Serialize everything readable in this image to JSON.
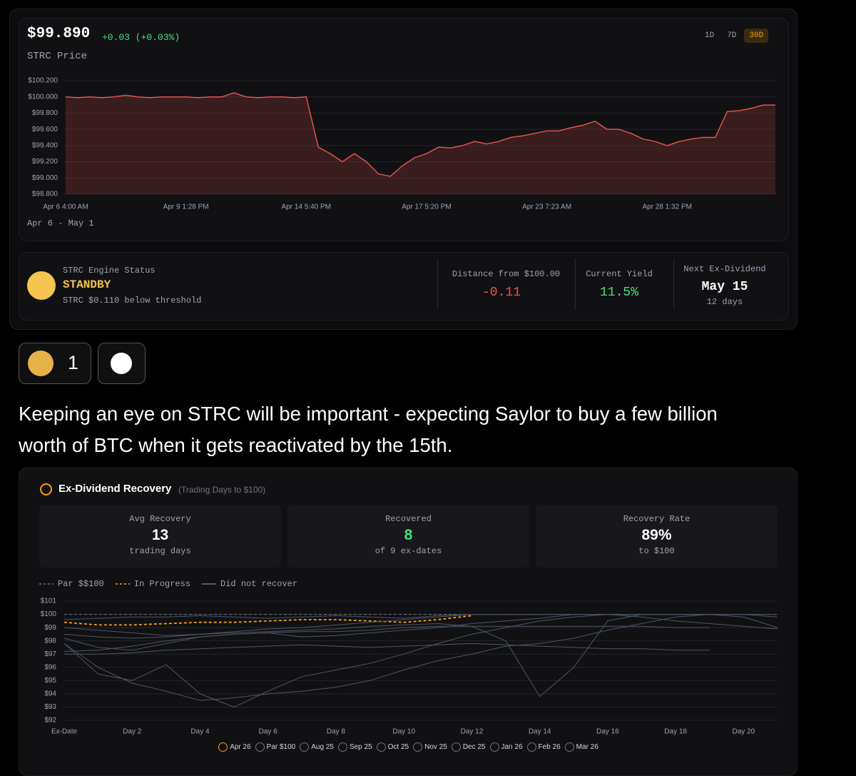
{
  "price_card": {
    "price": "$99.890",
    "change": "+0.03 (+0.03%)",
    "label": "STRC Price",
    "ranges": [
      "1D",
      "7D",
      "30D"
    ],
    "active_range": "30D",
    "date_range": "Apr 6 - May 1"
  },
  "status": {
    "title": "STRC Engine Status",
    "state": "STANDBY",
    "note": "STRC $0.110 below threshold",
    "distance_label": "Distance from $100.00",
    "distance_value": "-0.11",
    "yield_label": "Current Yield",
    "yield_value": "11.5%",
    "next_label": "Next Ex-Dividend",
    "next_value": "May 15",
    "next_sub": "12 days"
  },
  "reactions": {
    "count": 1
  },
  "post": {
    "lines": [
      "Keeping an eye on STRC will be important - expecting Saylor to buy a few billion",
      "worth of BTC when it gets reactivated by the 15th."
    ]
  },
  "recovery": {
    "title": "Ex-Dividend Recovery",
    "subtitle": "(Trading Days to $100)",
    "stats": [
      {
        "label": "Avg Recovery",
        "value": 13,
        "sub": "trading days",
        "color": "#ffffff"
      },
      {
        "label": "Recovered",
        "value": 8,
        "sub": "of 9 ex-dates",
        "color": "#4ade80"
      },
      {
        "label": "Recovery Rate",
        "value": "89%",
        "sub": "to $100",
        "color": "#ffffff"
      }
    ],
    "legend": [
      {
        "label": "Par $$100",
        "color": "#6b7280",
        "style": "dashed"
      },
      {
        "label": "In Progress",
        "color": "#f59e0b",
        "style": "dashed"
      },
      {
        "label": "Did not recover",
        "color": "#6b7280",
        "style": "solid"
      }
    ]
  },
  "chart_data": [
    {
      "type": "area",
      "color": "#e0524a",
      "categories": [
        "Apr 6 4:00 AM",
        null,
        null,
        null,
        null,
        null,
        null,
        null,
        null,
        null,
        "Apr 9 1:28 PM",
        null,
        null,
        null,
        null,
        null,
        null,
        null,
        null,
        null,
        "Apr 14 5:40 PM",
        null,
        null,
        null,
        null,
        null,
        null,
        null,
        null,
        null,
        "Apr 17 5:20 PM",
        null,
        null,
        null,
        null,
        null,
        null,
        null,
        null,
        null,
        "Apr 23 7:23 AM",
        null,
        null,
        null,
        null,
        null,
        null,
        null,
        null,
        null,
        "Apr 28 1:32 PM",
        null,
        null,
        null,
        null,
        null,
        null,
        null,
        null,
        null
      ],
      "values": [
        100.0,
        99.99,
        100.0,
        99.99,
        100.0,
        100.02,
        100.0,
        99.99,
        100.0,
        100.0,
        100.0,
        99.99,
        100.0,
        100.0,
        100.05,
        100.0,
        99.99,
        100.0,
        100.0,
        99.99,
        100.0,
        99.38,
        99.3,
        99.2,
        99.3,
        99.2,
        99.05,
        99.02,
        99.15,
        99.25,
        99.3,
        99.38,
        99.37,
        99.4,
        99.45,
        99.42,
        99.45,
        99.5,
        99.52,
        99.55,
        99.58,
        99.58,
        99.62,
        99.65,
        99.7,
        99.6,
        99.6,
        99.55,
        99.48,
        99.45,
        99.4,
        99.45,
        99.48,
        99.5,
        99.5,
        99.82,
        99.83,
        99.86,
        99.9,
        99.9
      ],
      "ylim": [
        98.8,
        100.2
      ],
      "yticks": [
        {
          "value": 98.8,
          "label": "$98.800"
        },
        {
          "value": 99.0,
          "label": "$99.000"
        },
        {
          "value": 99.2,
          "label": "$99.200"
        },
        {
          "value": 99.4,
          "label": "$99.400"
        },
        {
          "value": 99.6,
          "label": "$99.600"
        },
        {
          "value": 99.8,
          "label": "$99.800"
        },
        {
          "value": 100.0,
          "label": "$100.000"
        },
        {
          "value": 100.2,
          "label": "$100.200"
        }
      ],
      "grid": true
    },
    {
      "type": "line",
      "categories": [
        "Ex-Date",
        null,
        "Day 2",
        null,
        "Day 4",
        null,
        "Day 6",
        null,
        "Day 8",
        null,
        "Day 10",
        null,
        "Day 12",
        null,
        "Day 14",
        null,
        "Day 16",
        null,
        "Day 18",
        null,
        "Day 20",
        null
      ],
      "series": [
        {
          "name": "Apr 26",
          "color": "#f59e0b",
          "style": "dashed",
          "active": true,
          "values": [
            99.4,
            99.2,
            99.2,
            99.3,
            99.4,
            99.4,
            99.5,
            99.6,
            99.6,
            99.5,
            99.4,
            99.6,
            99.9,
            null,
            null,
            null,
            null,
            null,
            null,
            null,
            null,
            null
          ]
        },
        {
          "name": "Par $100",
          "color": "#6b7280",
          "style": "dashed",
          "values": [
            100,
            100,
            100,
            100,
            100,
            100,
            100,
            100,
            100,
            100,
            100,
            100,
            100,
            100,
            100,
            100,
            100,
            100,
            100,
            100,
            100,
            100
          ]
        },
        {
          "name": "Aug 25",
          "color": "#4b5563",
          "style": "solid",
          "values": [
            97.8,
            96,
            94.8,
            94.2,
            93.5,
            93.7,
            94,
            94.2,
            94.5,
            95,
            95.8,
            96.5,
            97,
            97.6,
            97.8,
            98.2,
            98.8,
            99.3,
            99.8,
            100,
            100,
            99.8
          ]
        },
        {
          "name": "Sep 25",
          "color": "#4b5563",
          "style": "solid",
          "values": [
            97.8,
            95.5,
            95,
            96.2,
            94,
            93,
            94.2,
            95.3,
            95.8,
            96.3,
            97,
            97.8,
            98.5,
            99,
            99.5,
            99.8,
            100,
            100,
            100,
            100,
            null,
            null
          ]
        },
        {
          "name": "Oct 25",
          "color": "#4b5563",
          "style": "solid",
          "values": [
            97,
            97,
            97.1,
            97.3,
            97.4,
            97.5,
            97.6,
            97.7,
            97.6,
            97.5,
            97.6,
            97.7,
            97.8,
            97.7,
            97.6,
            97.5,
            97.4,
            97.4,
            97.3,
            97.3,
            null,
            null
          ]
        },
        {
          "name": "Nov 25",
          "color": "#4b5563",
          "style": "solid",
          "values": [
            99.0,
            98.8,
            98.6,
            98.4,
            98.5,
            98.7,
            98.9,
            99.0,
            99.2,
            99.4,
            99.6,
            99.8,
            100,
            100,
            100,
            100,
            100,
            100,
            100,
            100,
            100,
            null
          ]
        },
        {
          "name": "Dec 25",
          "color": "#4b5563",
          "style": "solid",
          "values": [
            98.2,
            97.5,
            97.3,
            97.8,
            98.3,
            98.5,
            98.6,
            98.3,
            98.4,
            98.6,
            98.8,
            99,
            99.3,
            99.5,
            99.7,
            100,
            100,
            99.8,
            99.5,
            99.3,
            99.1,
            98.9
          ]
        },
        {
          "name": "Jan 26",
          "color": "#4b5563",
          "style": "solid",
          "values": [
            98.5,
            98.3,
            98.2,
            98.3,
            98.5,
            98.6,
            98.7,
            98.8,
            98.9,
            99.1,
            99.2,
            99.3,
            99.1,
            98,
            93.8,
            96,
            99.5,
            100,
            100,
            100,
            99.8,
            99
          ]
        },
        {
          "name": "Feb 26",
          "color": "#4b5563",
          "style": "solid",
          "values": [
            99.6,
            99.7,
            99.8,
            99.8,
            99.9,
            99.8,
            99.7,
            99.8,
            99.9,
            99.8,
            99.7,
            99.9,
            100,
            100,
            100,
            100,
            100,
            100,
            100,
            100,
            100,
            100
          ]
        },
        {
          "name": "Mar 26",
          "color": "#4b5563",
          "style": "solid",
          "values": [
            97.2,
            97.3,
            97.6,
            98,
            98.3,
            98.5,
            98.6,
            98.7,
            98.7,
            98.8,
            99,
            99.1,
            99.1,
            99.1,
            99.1,
            99.1,
            99.1,
            99.1,
            99.0,
            99.0,
            null,
            null
          ]
        }
      ],
      "ylim": [
        92,
        101
      ],
      "yticks": [
        {
          "value": 92,
          "label": "$92"
        },
        {
          "value": 93,
          "label": "$93"
        },
        {
          "value": 94,
          "label": "$94"
        },
        {
          "value": 95,
          "label": "$95"
        },
        {
          "value": 96,
          "label": "$96"
        },
        {
          "value": 97,
          "label": "$97"
        },
        {
          "value": 98,
          "label": "$98"
        },
        {
          "value": 99,
          "label": "$99"
        },
        {
          "value": 100,
          "label": "$100"
        },
        {
          "value": 101,
          "label": "$101"
        }
      ],
      "grid": true
    }
  ]
}
